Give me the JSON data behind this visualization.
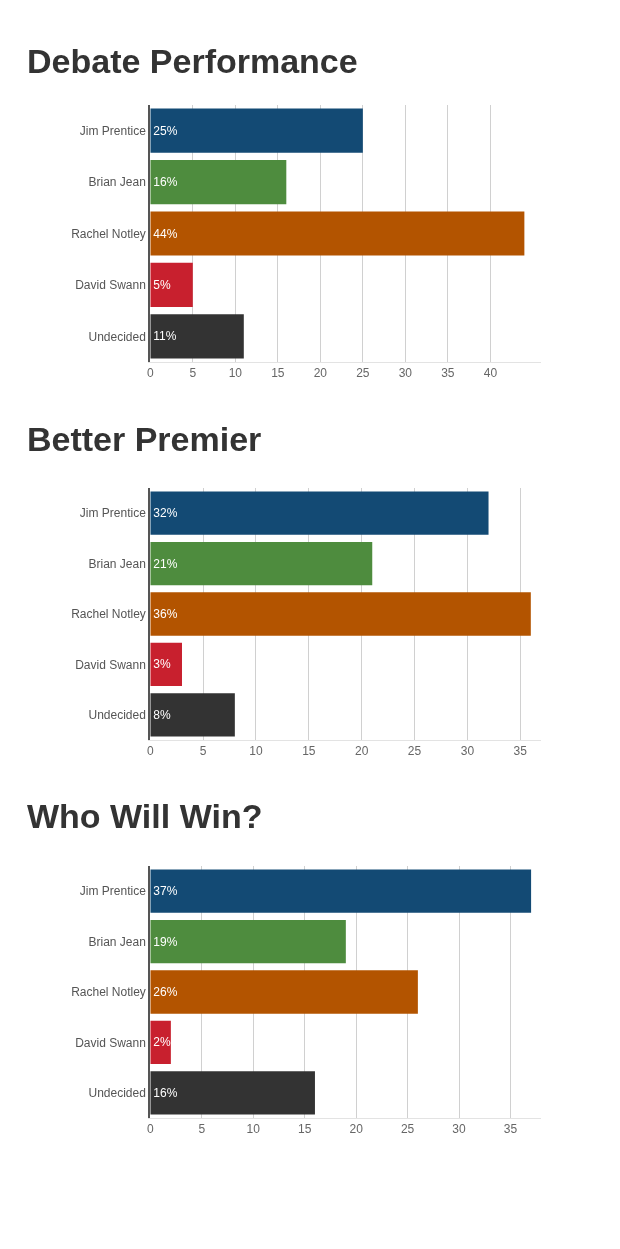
{
  "chart_data": [
    {
      "type": "bar",
      "orientation": "horizontal",
      "title": "Debate Performance",
      "categories": [
        "Jim Prentice",
        "Brian Jean",
        "Rachel Notley",
        "David Swann",
        "Undecided"
      ],
      "values": [
        25,
        16,
        44,
        5,
        11
      ],
      "value_labels": [
        "25%",
        "16%",
        "44%",
        "5%",
        "11%"
      ],
      "colors": [
        "#134a74",
        "#4e8c3e",
        "#b35400",
        "#c8202e",
        "#333333"
      ],
      "xlim": [
        0,
        46
      ],
      "xticks": [
        0,
        5,
        10,
        15,
        20,
        25,
        30,
        35,
        40
      ],
      "grid": "x",
      "legend": false
    },
    {
      "type": "bar",
      "orientation": "horizontal",
      "title": "Better Premier",
      "categories": [
        "Jim Prentice",
        "Brian Jean",
        "Rachel Notley",
        "David Swann",
        "Undecided"
      ],
      "values": [
        32,
        21,
        36,
        3,
        8
      ],
      "value_labels": [
        "32%",
        "21%",
        "36%",
        "3%",
        "8%"
      ],
      "colors": [
        "#134a74",
        "#4e8c3e",
        "#b35400",
        "#c8202e",
        "#333333"
      ],
      "xlim": [
        0,
        37
      ],
      "xticks": [
        0,
        5,
        10,
        15,
        20,
        25,
        30,
        35
      ],
      "grid": "x",
      "legend": false
    },
    {
      "type": "bar",
      "orientation": "horizontal",
      "title": "Who Will Win?",
      "categories": [
        "Jim Prentice",
        "Brian Jean",
        "Rachel Notley",
        "David Swann",
        "Undecided"
      ],
      "values": [
        37,
        19,
        26,
        2,
        16
      ],
      "value_labels": [
        "37%",
        "19%",
        "26%",
        "2%",
        "16%"
      ],
      "colors": [
        "#134a74",
        "#4e8c3e",
        "#b35400",
        "#c8202e",
        "#333333"
      ],
      "xlim": [
        0,
        38
      ],
      "xticks": [
        0,
        5,
        10,
        15,
        20,
        25,
        30,
        35
      ],
      "grid": "x",
      "legend": false
    }
  ]
}
